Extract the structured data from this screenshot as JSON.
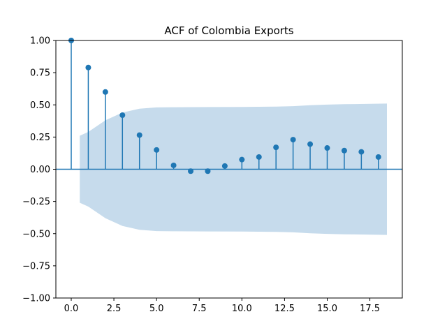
{
  "chart_data": {
    "type": "stem",
    "title": "ACF of Colombia Exports",
    "xlabel": "",
    "ylabel": "",
    "xlim": [
      -0.9,
      19.4
    ],
    "ylim": [
      -1.0,
      1.0
    ],
    "xticks": [
      0.0,
      2.5,
      5.0,
      7.5,
      10.0,
      12.5,
      15.0,
      17.5
    ],
    "xtick_labels": [
      "0.0",
      "2.5",
      "5.0",
      "7.5",
      "10.0",
      "12.5",
      "15.0",
      "17.5"
    ],
    "yticks": [
      1.0,
      0.75,
      0.5,
      0.25,
      0.0,
      -0.25,
      -0.5,
      -0.75,
      -1.0
    ],
    "ytick_labels": [
      "1.00",
      "0.75",
      "0.50",
      "0.25",
      "0.00",
      "−0.25",
      "−0.50",
      "−0.75",
      "−1.00"
    ],
    "lags": [
      0,
      1,
      2,
      3,
      4,
      5,
      6,
      7,
      8,
      9,
      10,
      11,
      12,
      13,
      14,
      15,
      16,
      17,
      18
    ],
    "values": [
      1.0,
      0.79,
      0.6,
      0.42,
      0.265,
      0.15,
      0.03,
      -0.015,
      -0.015,
      0.025,
      0.075,
      0.095,
      0.17,
      0.23,
      0.195,
      0.165,
      0.145,
      0.135,
      0.095
    ],
    "confidence_band": {
      "x": [
        0.5,
        1,
        2,
        3,
        4,
        5,
        6,
        8,
        10,
        12,
        13,
        14,
        15,
        16,
        18.5
      ],
      "upper": [
        0.26,
        0.29,
        0.38,
        0.44,
        0.47,
        0.48,
        0.482,
        0.483,
        0.484,
        0.486,
        0.49,
        0.497,
        0.502,
        0.505,
        0.51
      ]
    },
    "colors": {
      "stem": "#1f77b4",
      "band": "#c6dbec",
      "zero_line": "#1f77b4"
    },
    "grid": false
  }
}
